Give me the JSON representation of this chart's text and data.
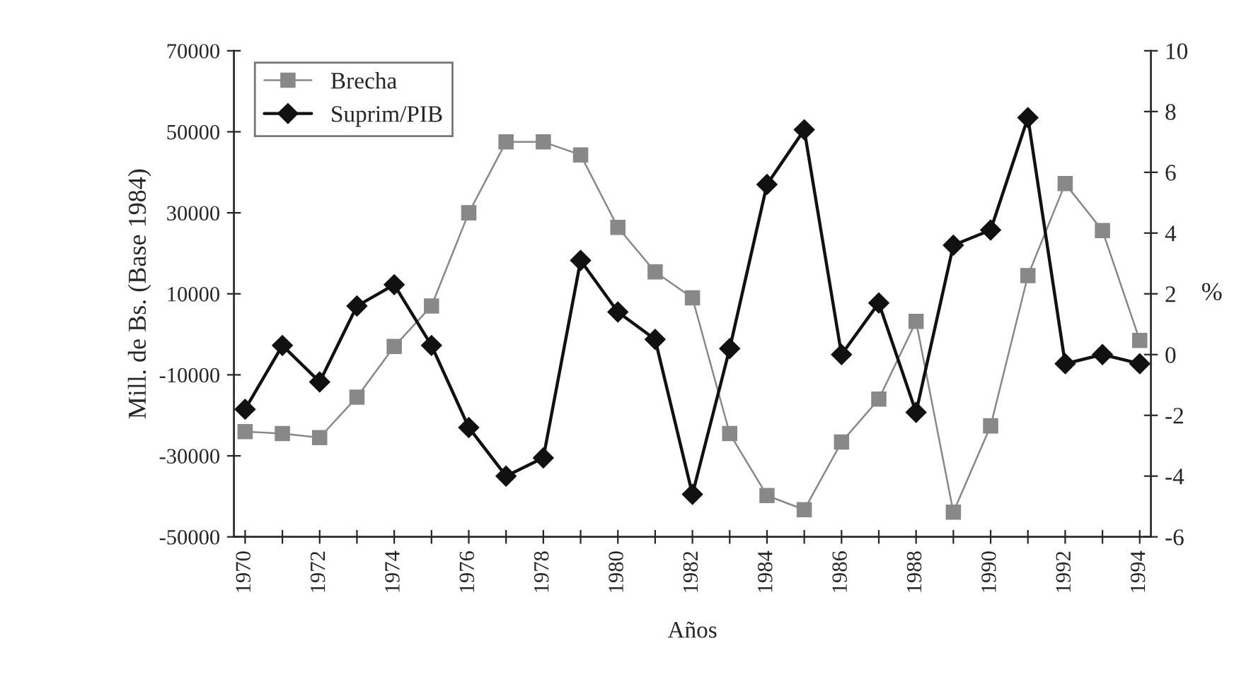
{
  "chart_data": {
    "type": "line",
    "xlabel": "Años",
    "ylabel": "Mill. de Bs. (Base 1984)",
    "y2label": "%",
    "categories": [
      "1970",
      null,
      "1972",
      null,
      "1974",
      null,
      "1976",
      null,
      "1978",
      null,
      "1980",
      null,
      "1982",
      null,
      "1984",
      null,
      "1986",
      null,
      "1988",
      null,
      "1990",
      null,
      "1992",
      null,
      "1994"
    ],
    "series": [
      {
        "name": "Brecha",
        "color": "#888888",
        "marker": "square",
        "values": [
          -24000,
          -24500,
          -25500,
          -15500,
          -3000,
          7000,
          30000,
          47500,
          47500,
          44300,
          26400,
          15400,
          9000,
          -24500,
          -39800,
          -43300,
          -26600,
          -16000,
          3200,
          -43900,
          -22600,
          14500,
          37200,
          25600,
          -1500
        ]
      },
      {
        "name": "Suprim/PIB",
        "color": "#111111",
        "marker": "diamond",
        "axis": "y2",
        "values": [
          -1.8,
          0.3,
          -0.9,
          1.6,
          2.3,
          0.3,
          -2.4,
          -4.0,
          -3.4,
          3.1,
          1.4,
          0.5,
          -4.6,
          0.2,
          5.6,
          7.4,
          0.0,
          1.7,
          -1.9,
          3.6,
          4.1,
          7.8,
          -0.3,
          0.0,
          -0.3
        ]
      }
    ],
    "ylim": [
      -50000,
      70000
    ],
    "yticks": [
      -50000,
      -30000,
      -10000,
      10000,
      30000,
      50000,
      70000
    ],
    "y2lim": [
      -6,
      10
    ],
    "y2ticks": [
      -6,
      -4,
      -2,
      0,
      2,
      4,
      6,
      8,
      10
    ],
    "grid": false,
    "legend": "top left",
    "line_style": "solid"
  }
}
